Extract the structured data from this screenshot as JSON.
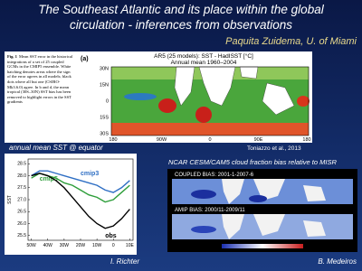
{
  "header": {
    "title": "The Southeast Atlantic and its place within the global circulation - inferences from observations",
    "author": "Paquita Zuidema, U. of Miami"
  },
  "figure_sst_error": {
    "caption_label": "Fig. 1",
    "caption": "Mean SST error in the historical integrations of a set of 25 coupled GCMs in the CMIP5 ensemble. White hatching denotes areas where the sign of the error agrees in all models; black dots where all but one (CSIRO-Mk3.6.0) agree. In b and d, the mean tropical (30S–30N) SST bias has been removed to highlight errors in the SST gradients",
    "panel": "(a)",
    "map_title": "AR5 (25 models): SST - HadISST [°C]",
    "map_subtitle": "Annual mean 1960–2004",
    "lat_labels": [
      "30N",
      "15N",
      "0",
      "15S",
      "30S"
    ],
    "lon_labels": [
      "180",
      "90W",
      "0",
      "90E",
      "180"
    ],
    "credit": "Toniazzo et al., 2013"
  },
  "equator_chart": {
    "type": "line",
    "title": "annual mean SST @ equator",
    "y_label": "SST",
    "x": [
      -50,
      -45,
      -40,
      -35,
      -30,
      -25,
      -20,
      -15,
      -10,
      -5,
      0,
      5,
      10
    ],
    "series": [
      {
        "name": "cmip3",
        "color": "#2f6fc4",
        "values": [
          28.0,
          28.2,
          28.2,
          28.1,
          28.0,
          27.9,
          27.8,
          27.7,
          27.6,
          27.4,
          27.3,
          27.5,
          27.8
        ]
      },
      {
        "name": "cmip5",
        "color": "#2e9e3a",
        "values": [
          27.9,
          28.1,
          28.0,
          27.9,
          27.7,
          27.6,
          27.4,
          27.2,
          27.1,
          26.9,
          27.0,
          27.3,
          27.6
        ]
      },
      {
        "name": "obs",
        "color": "#000000",
        "values": [
          28.0,
          28.1,
          28.0,
          27.8,
          27.5,
          27.1,
          26.7,
          26.3,
          26.0,
          25.8,
          25.9,
          26.2,
          26.6
        ]
      }
    ],
    "xlim": [
      -52,
      12
    ],
    "ylim": [
      25.3,
      28.7
    ],
    "xticks": [
      {
        "value": -50,
        "label": "50W"
      },
      {
        "value": -40,
        "label": "40W"
      },
      {
        "value": -30,
        "label": "30W"
      },
      {
        "value": -20,
        "label": "20W"
      },
      {
        "value": -10,
        "label": "10W"
      },
      0,
      {
        "value": 10,
        "label": "10E"
      }
    ],
    "yticks": [
      28.5,
      {
        "value": 28,
        "label": "28.0"
      },
      27.5,
      {
        "value": 27,
        "label": "27.0"
      },
      26.5,
      {
        "value": 26,
        "label": "26.0"
      },
      25.5
    ],
    "credit": "I. Richter"
  },
  "figure_cloud": {
    "title": "NCAR CESM/CAM5 cloud fraction bias relative to MISR",
    "panel_top": "COUPLED BIAS: 2001-1-2007-6",
    "panel_bottom": "AMIP BIAS: 2000/11-2009/11",
    "credit": "B. Medeiros"
  }
}
